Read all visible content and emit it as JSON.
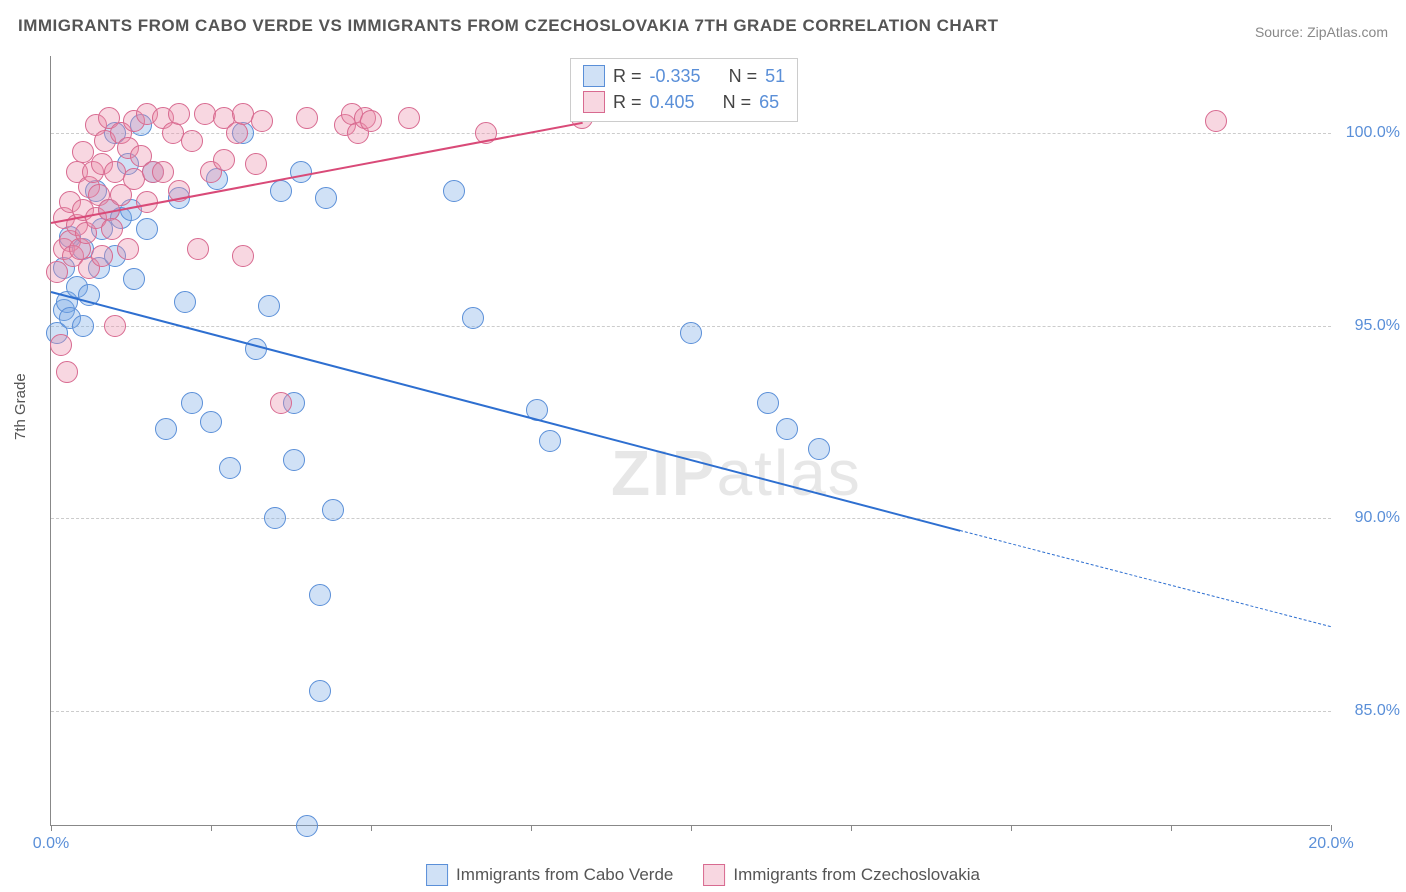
{
  "title": "IMMIGRANTS FROM CABO VERDE VS IMMIGRANTS FROM CZECHOSLOVAKIA 7TH GRADE CORRELATION CHART",
  "source": "Source: ZipAtlas.com",
  "ylabel": "7th Grade",
  "watermark_bold": "ZIP",
  "watermark_rest": "atlas",
  "chart": {
    "type": "scatter",
    "xlim": [
      0,
      20
    ],
    "ylim": [
      82,
      102
    ],
    "xtick_positions": [
      0,
      2.5,
      5,
      7.5,
      10,
      12.5,
      15,
      17.5,
      20
    ],
    "xtick_labels": {
      "0": "0.0%",
      "20": "20.0%"
    },
    "ytick_positions": [
      85,
      90,
      95,
      100
    ],
    "ytick_labels": {
      "85": "85.0%",
      "90": "90.0%",
      "95": "95.0%",
      "100": "100.0%"
    },
    "background_color": "#ffffff",
    "grid_color": "#cccccc",
    "axis_color": "#888888",
    "tick_label_color": "#5a8fd8",
    "point_radius": 11,
    "series": [
      {
        "name": "Immigrants from Cabo Verde",
        "color_fill": "rgba(120,170,230,0.35)",
        "color_stroke": "#5a8fd8",
        "R": "-0.335",
        "N": "51",
        "regression": {
          "x1": 0,
          "y1": 95.9,
          "x2": 14.2,
          "y2": 89.7,
          "x2dash": 20,
          "y2dash": 87.2,
          "color": "#2e6fd0",
          "width": 2.5
        },
        "points": [
          [
            0.1,
            94.8
          ],
          [
            0.2,
            95.4
          ],
          [
            0.2,
            96.5
          ],
          [
            0.25,
            95.6
          ],
          [
            0.3,
            97.3
          ],
          [
            0.3,
            95.2
          ],
          [
            0.4,
            96.0
          ],
          [
            0.5,
            97.0
          ],
          [
            0.5,
            95.0
          ],
          [
            0.6,
            95.8
          ],
          [
            0.7,
            98.5
          ],
          [
            0.75,
            96.5
          ],
          [
            0.8,
            97.5
          ],
          [
            0.9,
            98.0
          ],
          [
            1.0,
            96.8
          ],
          [
            1.0,
            100.0
          ],
          [
            1.1,
            97.8
          ],
          [
            1.2,
            99.2
          ],
          [
            1.25,
            98.0
          ],
          [
            1.3,
            96.2
          ],
          [
            1.4,
            100.2
          ],
          [
            1.5,
            97.5
          ],
          [
            1.6,
            99.0
          ],
          [
            1.8,
            92.3
          ],
          [
            2.0,
            98.3
          ],
          [
            2.1,
            95.6
          ],
          [
            2.2,
            93.0
          ],
          [
            2.5,
            92.5
          ],
          [
            2.6,
            98.8
          ],
          [
            2.8,
            91.3
          ],
          [
            3.0,
            100.0
          ],
          [
            3.2,
            94.4
          ],
          [
            3.4,
            95.5
          ],
          [
            3.5,
            90.0
          ],
          [
            3.6,
            98.5
          ],
          [
            3.8,
            93.0
          ],
          [
            3.8,
            91.5
          ],
          [
            3.9,
            99.0
          ],
          [
            4.0,
            82.0
          ],
          [
            4.2,
            85.5
          ],
          [
            4.2,
            88.0
          ],
          [
            4.3,
            98.3
          ],
          [
            4.4,
            90.2
          ],
          [
            6.3,
            98.5
          ],
          [
            6.6,
            95.2
          ],
          [
            7.6,
            92.8
          ],
          [
            7.8,
            92.0
          ],
          [
            10.0,
            94.8
          ],
          [
            11.2,
            93.0
          ],
          [
            11.5,
            92.3
          ],
          [
            12.0,
            91.8
          ]
        ]
      },
      {
        "name": "Immigrants from Czechoslovakia",
        "color_fill": "rgba(235,140,170,0.35)",
        "color_stroke": "#d86a90",
        "R": "0.405",
        "N": "65",
        "regression": {
          "x1": 0,
          "y1": 97.7,
          "x2": 8.3,
          "y2": 100.3,
          "color": "#d94a78",
          "width": 2.5
        },
        "points": [
          [
            0.1,
            96.4
          ],
          [
            0.15,
            94.5
          ],
          [
            0.2,
            97.0
          ],
          [
            0.2,
            97.8
          ],
          [
            0.25,
            93.8
          ],
          [
            0.3,
            97.2
          ],
          [
            0.3,
            98.2
          ],
          [
            0.35,
            96.8
          ],
          [
            0.4,
            97.6
          ],
          [
            0.4,
            99.0
          ],
          [
            0.45,
            97.0
          ],
          [
            0.5,
            98.0
          ],
          [
            0.5,
            99.5
          ],
          [
            0.55,
            97.4
          ],
          [
            0.6,
            98.6
          ],
          [
            0.6,
            96.5
          ],
          [
            0.65,
            99.0
          ],
          [
            0.7,
            97.8
          ],
          [
            0.7,
            100.2
          ],
          [
            0.75,
            98.4
          ],
          [
            0.8,
            99.2
          ],
          [
            0.8,
            96.8
          ],
          [
            0.85,
            99.8
          ],
          [
            0.9,
            98.0
          ],
          [
            0.9,
            100.4
          ],
          [
            0.95,
            97.5
          ],
          [
            1.0,
            99.0
          ],
          [
            1.0,
            95.0
          ],
          [
            1.1,
            100.0
          ],
          [
            1.1,
            98.4
          ],
          [
            1.2,
            99.6
          ],
          [
            1.2,
            97.0
          ],
          [
            1.3,
            100.3
          ],
          [
            1.3,
            98.8
          ],
          [
            1.4,
            99.4
          ],
          [
            1.5,
            100.5
          ],
          [
            1.5,
            98.2
          ],
          [
            1.6,
            99.0
          ],
          [
            1.75,
            100.4
          ],
          [
            1.75,
            99.0
          ],
          [
            1.9,
            100.0
          ],
          [
            2.0,
            98.5
          ],
          [
            2.0,
            100.5
          ],
          [
            2.2,
            99.8
          ],
          [
            2.3,
            97.0
          ],
          [
            2.4,
            100.5
          ],
          [
            2.5,
            99.0
          ],
          [
            2.7,
            100.4
          ],
          [
            2.7,
            99.3
          ],
          [
            2.9,
            100.0
          ],
          [
            3.0,
            100.5
          ],
          [
            3.0,
            96.8
          ],
          [
            3.2,
            99.2
          ],
          [
            3.3,
            100.3
          ],
          [
            3.6,
            93.0
          ],
          [
            4.0,
            100.4
          ],
          [
            4.6,
            100.2
          ],
          [
            4.7,
            100.5
          ],
          [
            4.8,
            100.0
          ],
          [
            4.9,
            100.4
          ],
          [
            5.0,
            100.3
          ],
          [
            5.6,
            100.4
          ],
          [
            6.8,
            100.0
          ],
          [
            8.3,
            100.4
          ],
          [
            18.2,
            100.3
          ]
        ]
      }
    ]
  },
  "legend_box": {
    "r_label": "R =",
    "n_label": "N ="
  },
  "bottom_legend": [
    {
      "label": "Immigrants from Cabo Verde",
      "fill": "rgba(120,170,230,0.35)",
      "stroke": "#5a8fd8"
    },
    {
      "label": "Immigrants from Czechoslovakia",
      "fill": "rgba(235,140,170,0.35)",
      "stroke": "#d86a90"
    }
  ]
}
